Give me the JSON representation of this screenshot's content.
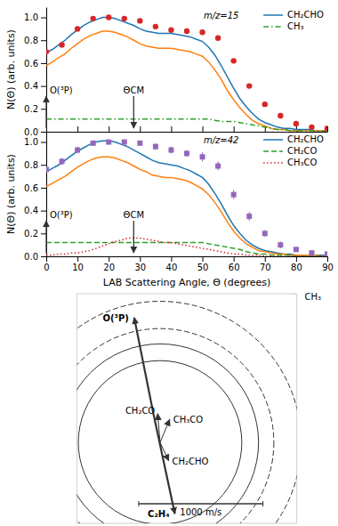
{
  "chart_data": [
    {
      "type": "line",
      "tick_labels": "y",
      "ylabel": "N(Θ) (arb. units)",
      "xlim": [
        0,
        90
      ],
      "ylim": [
        0.0,
        1.09
      ],
      "xticks": [
        0,
        10,
        20,
        30,
        40,
        50,
        60,
        70,
        80,
        90
      ],
      "yticks": [
        {
          "value": 0.0,
          "label": "0.0"
        },
        0.2,
        0.4,
        0.6,
        0.8,
        {
          "value": 1.0,
          "label": "1.0"
        }
      ],
      "grid": false,
      "legend": "upper right",
      "annotations": [
        {
          "text": "O(³P)",
          "x": 0,
          "arrow": "up"
        },
        {
          "text": "ΘCM",
          "x": 28,
          "arrow": "down"
        },
        {
          "text": "m/z=15"
        }
      ],
      "series": [
        {
          "name": "CH₂CHO",
          "type": "line",
          "line_style": "solid",
          "x": [
            0,
            2,
            4,
            6,
            8,
            10,
            12,
            14,
            16,
            18,
            20,
            22,
            24,
            26,
            28,
            30,
            32,
            34,
            36,
            38,
            40,
            42,
            44,
            46,
            48,
            50,
            52,
            54,
            56,
            58,
            60,
            62,
            64,
            66,
            68,
            70,
            72,
            74,
            76,
            78,
            80,
            82,
            84,
            86,
            88,
            90
          ],
          "values": [
            0.69,
            0.72,
            0.76,
            0.8,
            0.85,
            0.89,
            0.93,
            0.96,
            0.98,
            1.0,
            1.0,
            0.99,
            0.97,
            0.95,
            0.93,
            0.9,
            0.88,
            0.87,
            0.86,
            0.86,
            0.86,
            0.85,
            0.84,
            0.83,
            0.81,
            0.79,
            0.74,
            0.67,
            0.58,
            0.48,
            0.38,
            0.29,
            0.22,
            0.16,
            0.11,
            0.08,
            0.06,
            0.04,
            0.03,
            0.03,
            0.02,
            0.02,
            0.02,
            0.01,
            0.01,
            0.01
          ]
        },
        {
          "type": "line",
          "line_style": "solid",
          "x": [
            0,
            2,
            4,
            6,
            8,
            10,
            12,
            14,
            16,
            18,
            20,
            22,
            24,
            26,
            28,
            30,
            32,
            34,
            36,
            38,
            40,
            42,
            44,
            46,
            48,
            50,
            52,
            54,
            56,
            58,
            60,
            62,
            64,
            66,
            68,
            70,
            72,
            74,
            76,
            78,
            80,
            82,
            84,
            86,
            88,
            90
          ],
          "values": [
            0.58,
            0.61,
            0.65,
            0.68,
            0.73,
            0.77,
            0.81,
            0.84,
            0.86,
            0.88,
            0.88,
            0.87,
            0.85,
            0.83,
            0.8,
            0.77,
            0.75,
            0.74,
            0.73,
            0.73,
            0.73,
            0.72,
            0.71,
            0.7,
            0.68,
            0.66,
            0.61,
            0.54,
            0.46,
            0.36,
            0.28,
            0.21,
            0.15,
            0.1,
            0.07,
            0.05,
            0.03,
            0.02,
            0.02,
            0.01,
            0.01,
            0.01,
            0.01,
            0.01,
            0.01,
            0.0
          ]
        },
        {
          "name": "CH₃",
          "type": "line",
          "line_style": "dashdot",
          "x": [
            0,
            2,
            4,
            6,
            8,
            10,
            12,
            14,
            16,
            18,
            20,
            22,
            24,
            26,
            28,
            30,
            32,
            34,
            36,
            38,
            40,
            42,
            44,
            46,
            48,
            50,
            52,
            54,
            56,
            58,
            60,
            62,
            64,
            66,
            68,
            70,
            72,
            74,
            76,
            78,
            80,
            82,
            84,
            86,
            88,
            90
          ],
          "values": [
            0.11,
            0.11,
            0.11,
            0.11,
            0.11,
            0.11,
            0.11,
            0.11,
            0.11,
            0.11,
            0.11,
            0.11,
            0.11,
            0.11,
            0.11,
            0.11,
            0.11,
            0.11,
            0.11,
            0.11,
            0.11,
            0.11,
            0.11,
            0.11,
            0.11,
            0.11,
            0.11,
            0.1,
            0.09,
            0.09,
            0.09,
            0.08,
            0.07,
            0.06,
            0.05,
            0.04,
            0.03,
            0.02,
            0.02,
            0.01,
            0.01,
            0.01,
            0.01,
            0.01,
            0.0,
            0.0
          ]
        },
        {
          "type": "scatter",
          "marker": "circle",
          "x": [
            0,
            5,
            10,
            15,
            20,
            25,
            30,
            35,
            40,
            45,
            50,
            55,
            60,
            65,
            70,
            75,
            80,
            85,
            90
          ],
          "values": [
            0.7,
            0.76,
            0.9,
            0.99,
            1.0,
            0.99,
            0.97,
            0.92,
            0.89,
            0.88,
            0.87,
            0.82,
            0.62,
            0.4,
            0.24,
            0.14,
            0.07,
            0.04,
            0.03
          ]
        }
      ]
    },
    {
      "type": "line",
      "xlabel": "LAB Scattering Angle, Θ (degrees)",
      "ylabel": "N(Θ) (arb. units)",
      "xlim": [
        0,
        90
      ],
      "ylim": [
        0.0,
        1.09
      ],
      "xticks": [
        0,
        10,
        20,
        30,
        40,
        50,
        60,
        70,
        80,
        90
      ],
      "yticks": [
        {
          "value": 0.0,
          "label": "0.0"
        },
        0.2,
        0.4,
        0.6,
        0.8,
        {
          "value": 1.0,
          "label": "1.0"
        }
      ],
      "grid": false,
      "legend": "upper right",
      "annotations": [
        {
          "text": "O(³P)",
          "x": 0,
          "arrow": "up"
        },
        {
          "text": "ΘCM",
          "x": 28,
          "arrow": "down"
        },
        {
          "text": "m/z=42"
        }
      ],
      "series": [
        {
          "name": "CH₂CHO",
          "type": "line",
          "line_style": "solid",
          "x": [
            0,
            2,
            4,
            6,
            8,
            10,
            12,
            14,
            16,
            18,
            20,
            22,
            24,
            26,
            28,
            30,
            32,
            34,
            36,
            38,
            40,
            42,
            44,
            46,
            48,
            50,
            52,
            54,
            56,
            58,
            60,
            62,
            64,
            66,
            68,
            70,
            72,
            74,
            76,
            78,
            80,
            82,
            84,
            86,
            88,
            90
          ],
          "values": [
            0.74,
            0.77,
            0.8,
            0.84,
            0.88,
            0.92,
            0.95,
            0.98,
            1.0,
            1.01,
            1.01,
            1.0,
            0.98,
            0.96,
            0.93,
            0.9,
            0.87,
            0.84,
            0.82,
            0.81,
            0.8,
            0.79,
            0.77,
            0.75,
            0.72,
            0.69,
            0.63,
            0.55,
            0.46,
            0.36,
            0.27,
            0.2,
            0.14,
            0.1,
            0.07,
            0.05,
            0.04,
            0.03,
            0.02,
            0.02,
            0.01,
            0.01,
            0.01,
            0.01,
            0.01,
            0.01
          ]
        },
        {
          "type": "line",
          "line_style": "solid",
          "x": [
            0,
            2,
            4,
            6,
            8,
            10,
            12,
            14,
            16,
            18,
            20,
            22,
            24,
            26,
            28,
            30,
            32,
            34,
            36,
            38,
            40,
            42,
            44,
            46,
            48,
            50,
            52,
            54,
            56,
            58,
            60,
            62,
            64,
            66,
            68,
            70,
            72,
            74,
            76,
            78,
            80,
            82,
            84,
            86,
            88,
            90
          ],
          "values": [
            0.61,
            0.64,
            0.67,
            0.7,
            0.74,
            0.78,
            0.81,
            0.84,
            0.86,
            0.87,
            0.87,
            0.86,
            0.84,
            0.82,
            0.79,
            0.76,
            0.74,
            0.71,
            0.7,
            0.69,
            0.69,
            0.68,
            0.67,
            0.65,
            0.62,
            0.59,
            0.54,
            0.47,
            0.39,
            0.3,
            0.22,
            0.16,
            0.11,
            0.08,
            0.05,
            0.04,
            0.03,
            0.02,
            0.02,
            0.01,
            0.01,
            0.01,
            0.01,
            0.01,
            0.0,
            0.0
          ]
        },
        {
          "name": "CH₂CO",
          "type": "line",
          "line_style": "dashed",
          "x": [
            0,
            2,
            4,
            6,
            8,
            10,
            12,
            14,
            16,
            18,
            20,
            22,
            24,
            26,
            28,
            30,
            32,
            34,
            36,
            38,
            40,
            42,
            44,
            46,
            48,
            50,
            52,
            54,
            56,
            58,
            60,
            62,
            64,
            66,
            68,
            70,
            72,
            74,
            76,
            78,
            80,
            82,
            84,
            86,
            88,
            90
          ],
          "values": [
            0.12,
            0.12,
            0.12,
            0.12,
            0.12,
            0.12,
            0.12,
            0.12,
            0.12,
            0.12,
            0.12,
            0.12,
            0.12,
            0.12,
            0.12,
            0.12,
            0.12,
            0.12,
            0.12,
            0.12,
            0.12,
            0.12,
            0.12,
            0.12,
            0.12,
            0.12,
            0.11,
            0.1,
            0.09,
            0.08,
            0.07,
            0.06,
            0.04,
            0.03,
            0.02,
            0.02,
            0.01,
            0.01,
            0.01,
            0.01,
            0.0,
            0.0,
            0.0,
            0.0,
            0.0,
            0.0
          ]
        },
        {
          "name": "CH₃CO",
          "type": "line",
          "line_style": "dotted",
          "x": [
            0,
            2,
            4,
            6,
            8,
            10,
            12,
            14,
            16,
            18,
            20,
            22,
            24,
            26,
            28,
            30,
            32,
            34,
            36,
            38,
            40,
            42,
            44,
            46,
            48,
            50,
            52,
            54,
            56,
            58,
            60,
            62,
            64,
            66,
            68,
            70,
            72,
            74,
            76,
            78,
            80,
            82,
            84,
            86,
            88,
            90
          ],
          "values": [
            0.01,
            0.01,
            0.02,
            0.02,
            0.03,
            0.03,
            0.04,
            0.05,
            0.07,
            0.09,
            0.11,
            0.13,
            0.14,
            0.16,
            0.16,
            0.16,
            0.15,
            0.14,
            0.13,
            0.12,
            0.12,
            0.11,
            0.1,
            0.09,
            0.08,
            0.07,
            0.06,
            0.05,
            0.04,
            0.03,
            0.02,
            0.02,
            0.01,
            0.01,
            0.01,
            0.0,
            0.0,
            0.0,
            0.0,
            0.0,
            0.0,
            0.0,
            0.0,
            0.0,
            0.0,
            0.0
          ]
        },
        {
          "type": "scatter",
          "marker": "square",
          "x": [
            0,
            5,
            10,
            15,
            20,
            25,
            30,
            35,
            40,
            45,
            50,
            55,
            60,
            65,
            70,
            75,
            80,
            85,
            90
          ],
          "values": [
            0.76,
            0.83,
            0.93,
            0.99,
            1.0,
            1.0,
            0.99,
            0.96,
            0.93,
            0.9,
            0.87,
            0.79,
            0.54,
            0.35,
            0.2,
            0.1,
            0.06,
            0.03,
            0.02
          ],
          "errors": [
            0.03,
            0.03,
            0.03,
            0.02,
            0.02,
            0.02,
            0.02,
            0.03,
            0.03,
            0.03,
            0.04,
            0.04,
            0.04,
            0.04,
            0.03,
            0.03,
            0.02,
            0.02,
            0.02
          ]
        }
      ]
    },
    {
      "type": "newton_diagram",
      "tick_labels": false,
      "xlim": [
        -1600,
        3000
      ],
      "ylim": [
        -2300,
        2500
      ],
      "origin": {
        "x": 0,
        "y": 0
      },
      "center": {
        "x": 140.9090909090909,
        "y": -609.0909090909091
      },
      "circles": [
        {
          "name": "CH₃",
          "radius": 2600,
          "line_style": "dashed"
        },
        {
          "radius": 1350,
          "line_style": "dashed"
        },
        {
          "radius": 780,
          "line_style": "dashed"
        },
        {
          "radius": 460,
          "line_style": "solid"
        },
        {
          "radius": 110,
          "line_style": "solid"
        }
      ],
      "beams": [
        {
          "name": "O(³P)",
          "x": -400,
          "y": 2000
        },
        {
          "name": "C₂H₄",
          "x": 450,
          "y": -2100
        }
      ],
      "products": [
        {
          "name": "CH₂CO",
          "x": 90.9090909090909,
          "y": -9.0909090909091
        },
        {
          "name": "CH₃CO",
          "x": 340.9090909090909,
          "y": -129.0909090909091
        },
        {
          "name": "CH₂CHO",
          "x": 320.9090909090909,
          "y": -989.0909090909091
        }
      ],
      "scale_bar": {
        "length": 1000,
        "label": "1000 m/s"
      }
    }
  ]
}
